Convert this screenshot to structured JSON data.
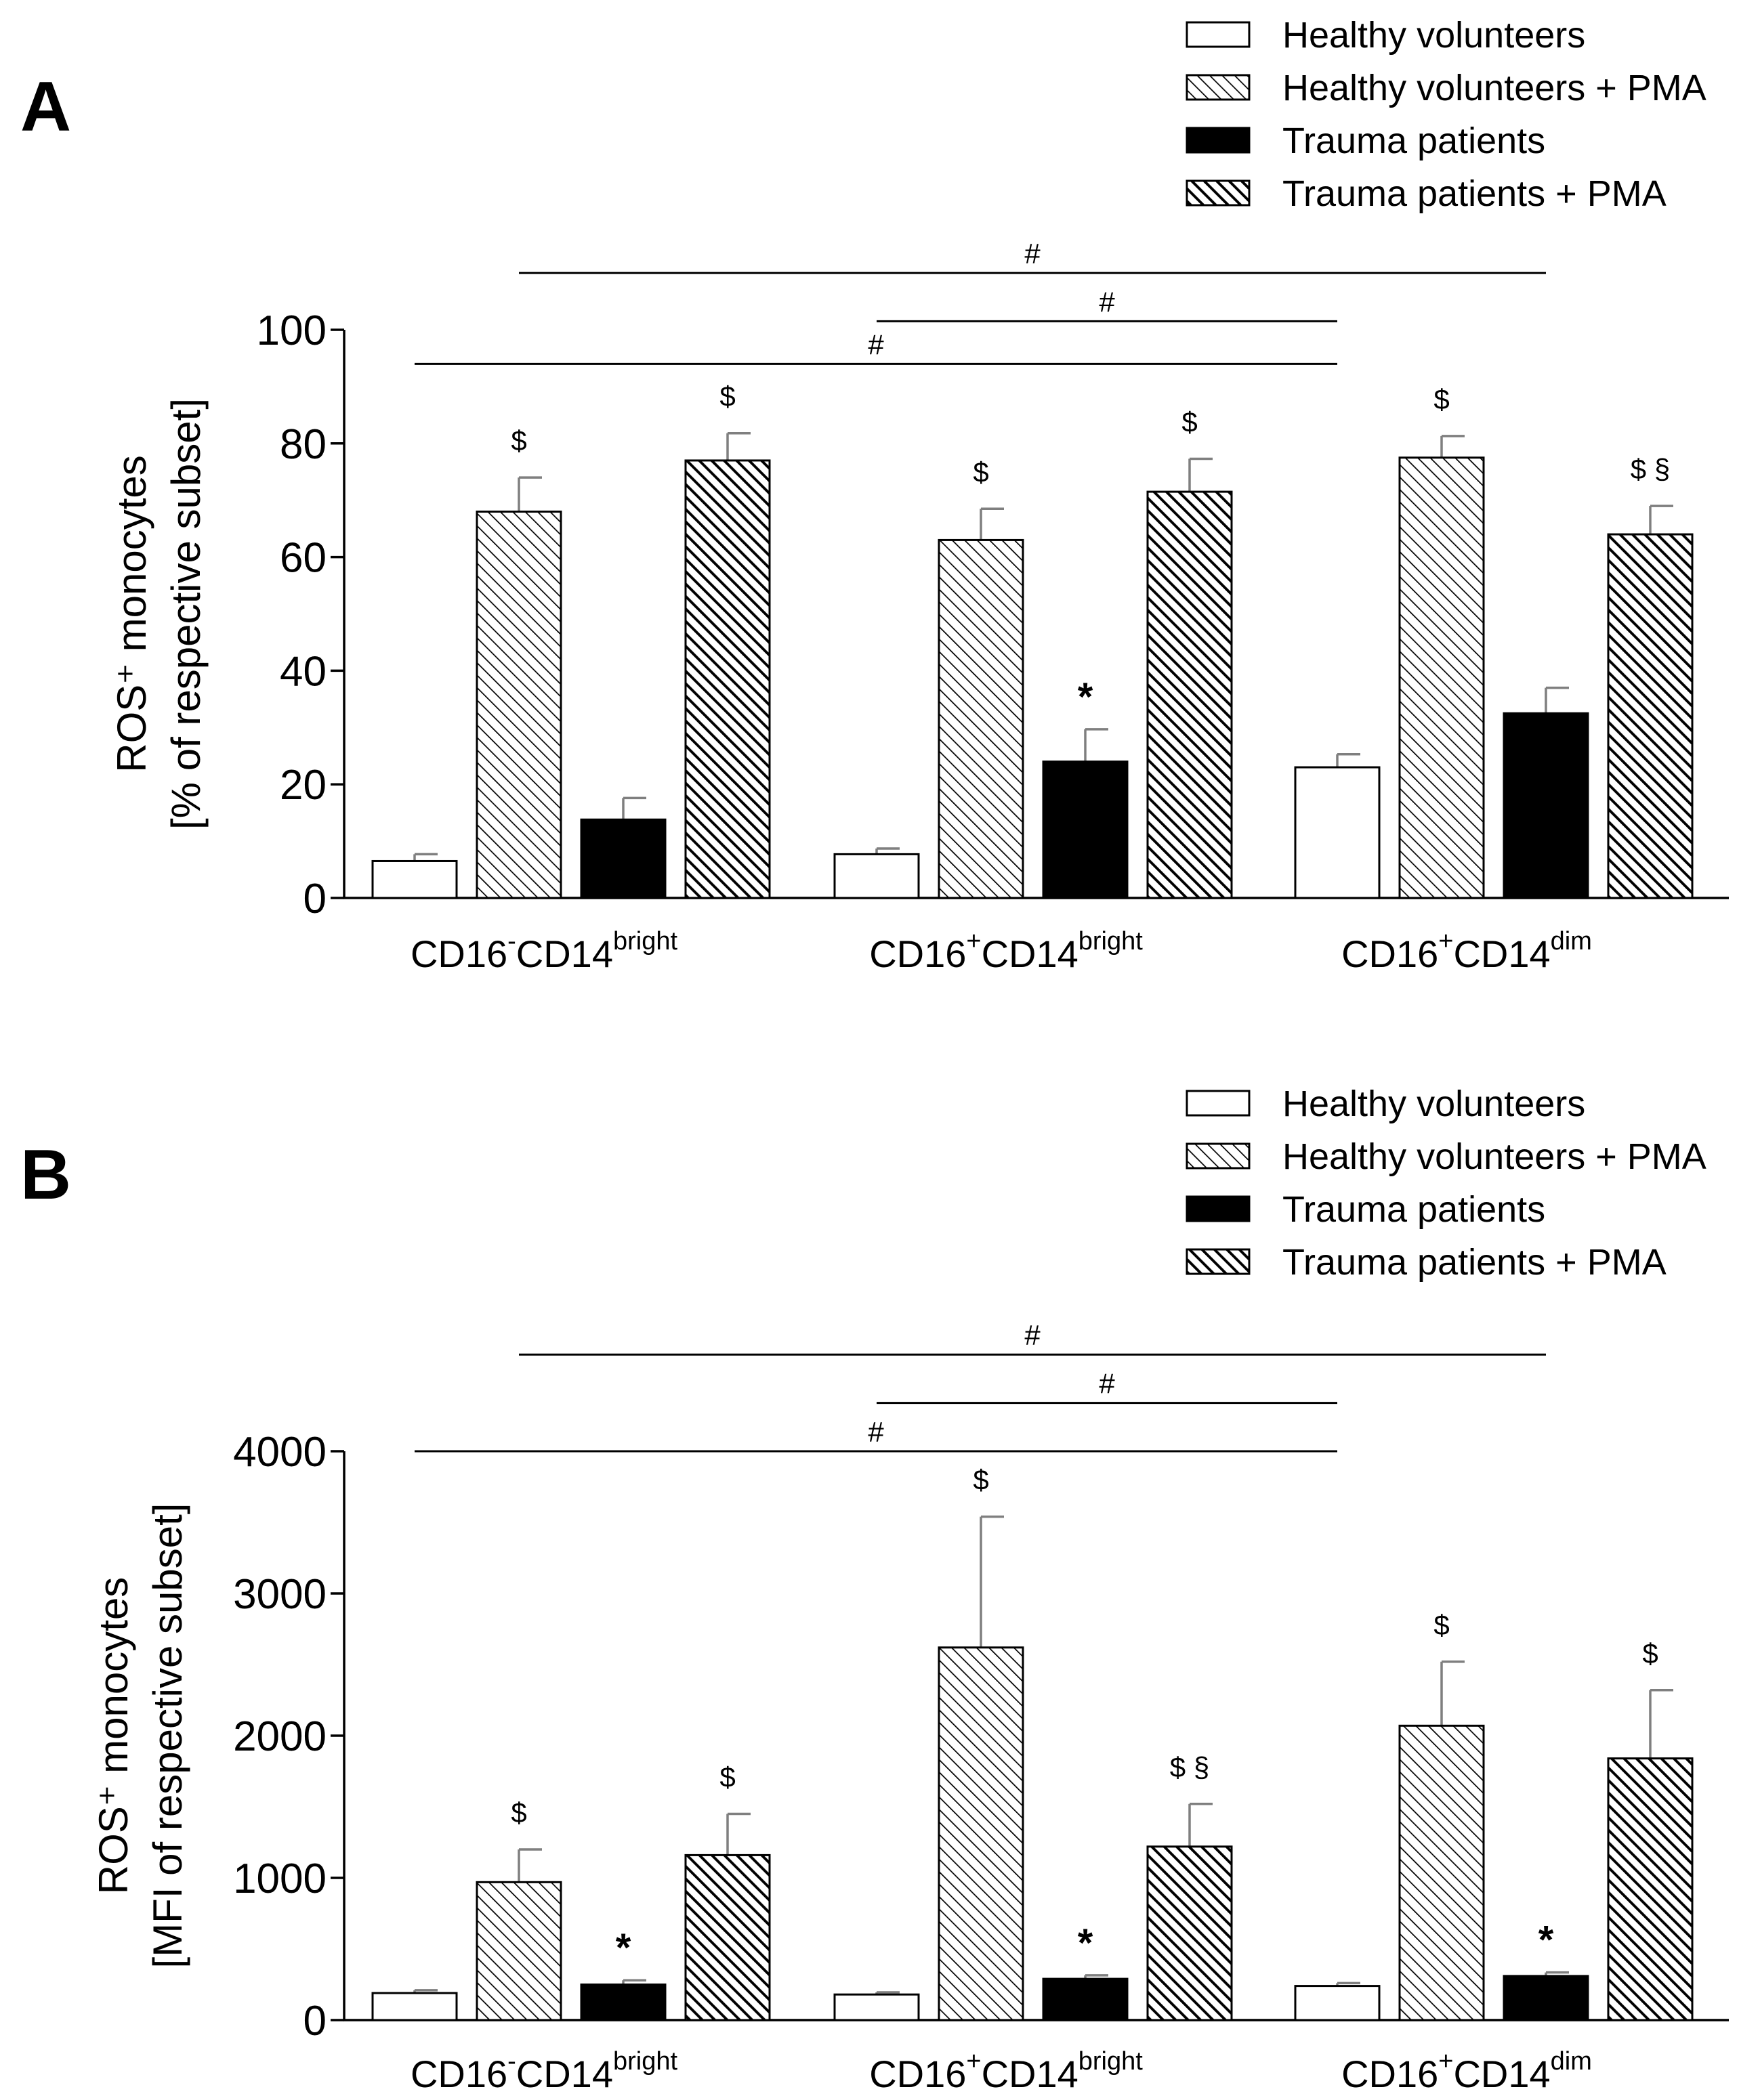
{
  "chart_data": [
    {
      "type": "bar",
      "panel": "A",
      "ylabel": [
        "ROS⁺ monocytes",
        "[% of respective subset]"
      ],
      "ylim": [
        0,
        100
      ],
      "yticks": [
        0,
        20,
        40,
        60,
        80,
        100
      ],
      "categories": [
        {
          "main1": "CD16",
          "sup1": "-",
          "main2": "CD14",
          "sup2": "bright"
        },
        {
          "main1": "CD16",
          "sup1": "+",
          "main2": "CD14",
          "sup2": "bright"
        },
        {
          "main1": "CD16",
          "sup1": "+",
          "main2": "CD14",
          "sup2": "dim"
        }
      ],
      "series": [
        {
          "name": "Healthy volunteers",
          "style": "white",
          "values": [
            6.5,
            7.7,
            23
          ],
          "errors": [
            1.2,
            1.0,
            2.3
          ],
          "annotations": [
            "",
            "",
            ""
          ]
        },
        {
          "name": "Healthy volunteers + PMA",
          "style": "hatch-light",
          "values": [
            68,
            63,
            77.5
          ],
          "errors": [
            6,
            5.5,
            3.8
          ],
          "annotations": [
            "$",
            "$",
            "$"
          ]
        },
        {
          "name": "Trauma patients",
          "style": "black",
          "values": [
            13.8,
            24,
            32.5
          ],
          "errors": [
            3.8,
            5.7,
            4.5
          ],
          "annotations": [
            "",
            "*",
            ""
          ]
        },
        {
          "name": "Trauma patients + PMA",
          "style": "hatch-dark",
          "values": [
            77,
            71.5,
            64
          ],
          "errors": [
            4.8,
            5.8,
            5
          ],
          "annotations": [
            "$",
            "$",
            "$ §"
          ]
        }
      ],
      "brackets": [
        {
          "label": "#",
          "from_category": 0,
          "to_category": 2,
          "value": 94
        },
        {
          "label": "#",
          "from_category": 1,
          "to_category": 2,
          "value": 101.5
        },
        {
          "label": "#",
          "from_category": 0,
          "to_category": 2,
          "value": 110
        }
      ]
    },
    {
      "type": "bar",
      "panel": "B",
      "ylabel": [
        "ROS⁺ monocytes",
        "[MFI of respective subset]"
      ],
      "ylim": [
        0,
        4000
      ],
      "yticks": [
        0,
        1000,
        2000,
        3000,
        4000
      ],
      "categories": [
        {
          "main1": "CD16",
          "sup1": "-",
          "main2": "CD14",
          "sup2": "bright"
        },
        {
          "main1": "CD16",
          "sup1": "+",
          "main2": "CD14",
          "sup2": "bright"
        },
        {
          "main1": "CD16",
          "sup1": "+",
          "main2": "CD14",
          "sup2": "dim"
        }
      ],
      "series": [
        {
          "name": "Healthy volunteers",
          "style": "white",
          "values": [
            190,
            180,
            240
          ],
          "errors": [
            20,
            15,
            20
          ],
          "annotations": [
            "",
            "",
            ""
          ]
        },
        {
          "name": "Healthy volunteers + PMA",
          "style": "hatch-light",
          "values": [
            970,
            2620,
            2070
          ],
          "errors": [
            230,
            920,
            450
          ],
          "annotations": [
            "$",
            "$",
            "$"
          ]
        },
        {
          "name": "Trauma patients",
          "style": "black",
          "values": [
            250,
            290,
            310
          ],
          "errors": [
            30,
            25,
            25
          ],
          "annotations": [
            "*",
            "*",
            "*"
          ]
        },
        {
          "name": "Trauma patients + PMA",
          "style": "hatch-dark",
          "values": [
            1160,
            1220,
            1840
          ],
          "errors": [
            290,
            300,
            480
          ],
          "annotations": [
            "$",
            "$ §",
            "$"
          ]
        }
      ],
      "brackets": [
        {
          "label": "#",
          "from_category": 0,
          "to_category": 2,
          "value": 4000
        },
        {
          "label": "#",
          "from_category": 1,
          "to_category": 2,
          "value": 4340
        },
        {
          "label": "#",
          "from_category": 0,
          "to_category": 2,
          "value": 4680
        }
      ]
    }
  ],
  "colors": {
    "ink": "#000000",
    "error_bar": "#7f7f7f",
    "background": "#ffffff"
  }
}
